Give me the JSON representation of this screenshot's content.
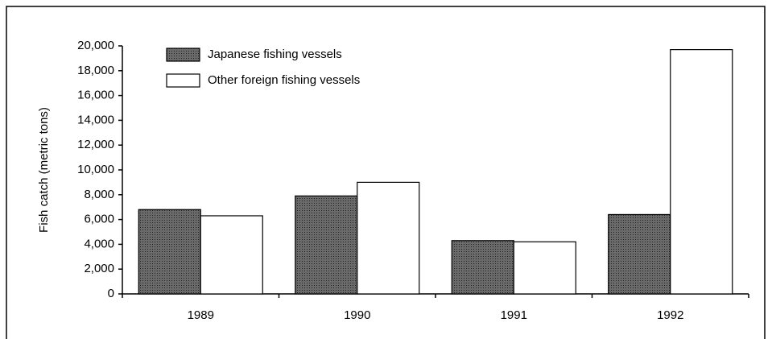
{
  "chart_data": {
    "type": "bar",
    "ylabel": "Fish catch (metric tons)",
    "categories": [
      "1989",
      "1990",
      "1991",
      "1992"
    ],
    "series": [
      {
        "name": "Japanese fishing vessels",
        "color": "#5a5a5a",
        "values": [
          6800,
          7900,
          4300,
          6400
        ]
      },
      {
        "name": "Other foreign fishing vessels",
        "color": "#ffffff",
        "values": [
          6300,
          9000,
          4200,
          19700
        ]
      }
    ],
    "ylim": [
      0,
      20000
    ],
    "yticks": [
      0,
      {
        "value": 2000,
        "label": "2,000"
      },
      {
        "value": 4000,
        "label": "4,000"
      },
      {
        "value": 6000,
        "label": "6,000"
      },
      {
        "value": 8000,
        "label": "8,000"
      },
      {
        "value": 10000,
        "label": "10,000"
      },
      {
        "value": 12000,
        "label": "12,000"
      },
      {
        "value": 14000,
        "label": "14,000"
      },
      {
        "value": 16000,
        "label": "16,000"
      },
      {
        "value": 18000,
        "label": "18,000"
      },
      {
        "value": 20000,
        "label": "20,000"
      }
    ],
    "legend": "upper-left"
  }
}
